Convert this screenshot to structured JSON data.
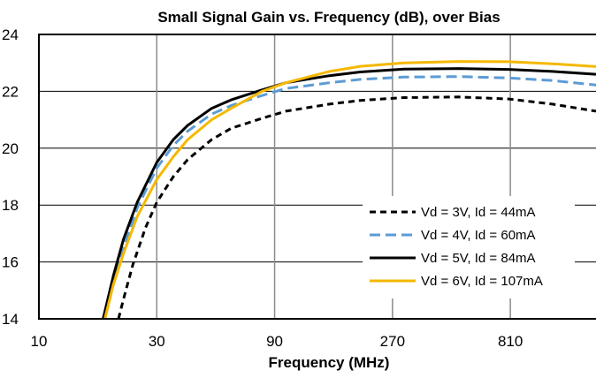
{
  "chart_data": {
    "type": "line",
    "title": "Small Signal Gain vs. Frequency (dB), over Bias",
    "xlabel": "Frequency (MHz)",
    "ylabel": "",
    "x_scale": "log",
    "xlim": [
      10,
      1800
    ],
    "ylim": [
      14,
      24
    ],
    "x_ticks": [
      10,
      30,
      90,
      270,
      810
    ],
    "x_tick_labels": [
      "10",
      "30",
      "90",
      "270",
      "810"
    ],
    "y_ticks": [
      14,
      16,
      18,
      20,
      22,
      24
    ],
    "y_tick_labels": [
      "14",
      "16",
      "18",
      "20",
      "22",
      "24"
    ],
    "grid": true,
    "legend_position": "lower-right",
    "series": [
      {
        "name": "Vd = 3V, Id = 44mA",
        "color": "#000000",
        "style": "dashed",
        "x": [
          21,
          22,
          24,
          27,
          30,
          35,
          40,
          50,
          60,
          80,
          100,
          150,
          200,
          300,
          500,
          800,
          1200,
          1800
        ],
        "y": [
          14.0,
          14.7,
          15.9,
          17.2,
          18.1,
          19.0,
          19.6,
          20.3,
          20.7,
          21.05,
          21.3,
          21.55,
          21.68,
          21.78,
          21.8,
          21.73,
          21.55,
          21.3
        ]
      },
      {
        "name": "Vd = 4V,  Id = 60mA",
        "color": "#5b9bd5",
        "style": "dashed",
        "x": [
          18.5,
          20,
          22,
          25,
          30,
          35,
          40,
          50,
          60,
          80,
          100,
          150,
          200,
          300,
          500,
          800,
          1200,
          1800
        ],
        "y": [
          14.0,
          15.2,
          16.5,
          17.9,
          19.3,
          20.1,
          20.6,
          21.2,
          21.5,
          21.85,
          22.1,
          22.3,
          22.42,
          22.5,
          22.52,
          22.47,
          22.38,
          22.22
        ]
      },
      {
        "name": "Vd = 5V, Id = 84mA",
        "color": "#000000",
        "style": "solid",
        "x": [
          18.2,
          20,
          22,
          25,
          30,
          35,
          40,
          50,
          60,
          80,
          100,
          150,
          200,
          300,
          500,
          800,
          1200,
          1800
        ],
        "y": [
          14.0,
          15.5,
          16.8,
          18.1,
          19.5,
          20.3,
          20.8,
          21.4,
          21.7,
          22.05,
          22.3,
          22.55,
          22.68,
          22.78,
          22.8,
          22.77,
          22.7,
          22.6
        ]
      },
      {
        "name": "Vd = 6V, Id = 107mA",
        "color": "#f5b800",
        "style": "solid",
        "x": [
          18.5,
          20,
          22,
          25,
          30,
          35,
          40,
          50,
          60,
          80,
          100,
          150,
          200,
          300,
          500,
          800,
          1200,
          1800
        ],
        "y": [
          14.0,
          15.2,
          16.3,
          17.6,
          18.9,
          19.7,
          20.3,
          21.0,
          21.4,
          22.0,
          22.3,
          22.7,
          22.88,
          23.0,
          23.05,
          23.04,
          22.97,
          22.87
        ]
      }
    ]
  }
}
